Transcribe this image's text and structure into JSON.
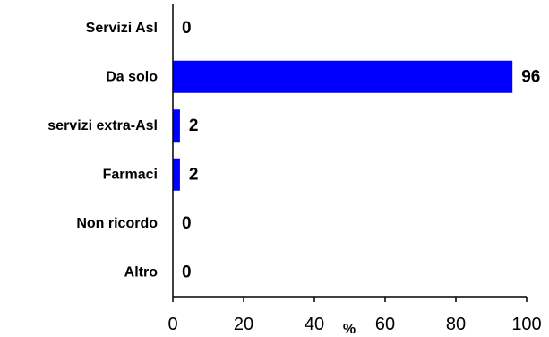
{
  "chart_data": {
    "type": "bar",
    "orientation": "horizontal",
    "categories": [
      "Servizi Asl",
      "Da solo",
      "servizi extra-Asl",
      "Farmaci",
      "Non ricordo",
      "Altro"
    ],
    "values": [
      0,
      96,
      2,
      2,
      0,
      0
    ],
    "data_labels": [
      "0",
      "96",
      "2",
      "2",
      "0",
      "0"
    ],
    "xlabel": "%",
    "xlim": [
      0,
      100
    ],
    "xticks": [
      "0",
      "20",
      "40",
      "60",
      "80",
      "100"
    ],
    "grid": false,
    "legend": "none",
    "bar_color": "#0000ff"
  }
}
